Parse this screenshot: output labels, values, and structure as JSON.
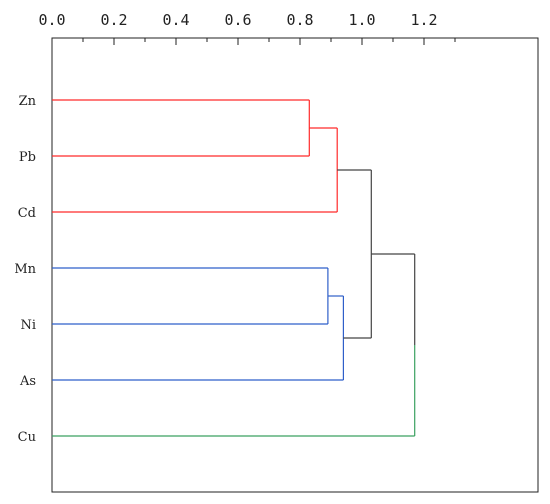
{
  "chart_data": {
    "type": "dendrogram",
    "orientation": "horizontal",
    "xlim": [
      0.0,
      1.25
    ],
    "x_ticks": [
      0.0,
      0.2,
      0.4,
      0.6,
      0.8,
      1.0,
      1.2
    ],
    "x_tick_labels": [
      "0.0",
      "0.2",
      "0.4",
      "0.6",
      "0.8",
      "1.0",
      "1.2"
    ],
    "x_minor_step": 0.1,
    "leaves": [
      "Zn",
      "Pb",
      "Cd",
      "Mn",
      "Ni",
      "As",
      "Cu"
    ],
    "merges": [
      {
        "left": "Zn",
        "right": "Pb",
        "height": 0.83,
        "color": "#ff2a2a"
      },
      {
        "left": "Zn+Pb",
        "right": "Cd",
        "height": 0.92,
        "color": "#ff2a2a"
      },
      {
        "left": "Mn",
        "right": "Ni",
        "height": 0.89,
        "color": "#2f5fc9"
      },
      {
        "left": "Mn+Ni",
        "right": "As",
        "height": 0.94,
        "color": "#2f5fc9"
      },
      {
        "left": "Zn+Pb+Cd",
        "right": "Mn+Ni+As",
        "height": 1.03,
        "color": "#444444"
      },
      {
        "left": "Zn+Pb+Cd+Mn+Ni+As",
        "right": "Cu",
        "height": 1.17,
        "color": "#444444"
      }
    ],
    "leaf_colors": {
      "Zn": "#ff2a2a",
      "Pb": "#ff2a2a",
      "Cd": "#ff2a2a",
      "Mn": "#2f5fc9",
      "Ni": "#2f5fc9",
      "As": "#2f5fc9",
      "Cu": "#3aa060"
    },
    "link_to_root_colors": {
      "Zn+Pb+Cd": "#444444",
      "Mn+Ni+As": "#444444",
      "Zn+Pb+Cd+Mn+Ni+As": "#444444",
      "Cu": "#3aa060"
    },
    "axis_position": "top",
    "grid": false
  }
}
